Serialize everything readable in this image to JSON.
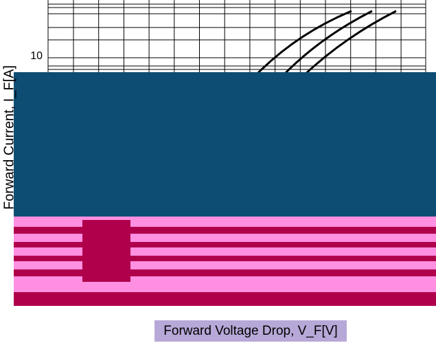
{
  "chart_data": {
    "type": "line",
    "ylabel": "Forward Current, I_F[A]",
    "xlabel": "Forward Voltage Drop, V_F[V]",
    "y_scale": "log",
    "ylim": [
      1,
      100
    ],
    "yticks": [
      10
    ],
    "grid": true
  }
}
